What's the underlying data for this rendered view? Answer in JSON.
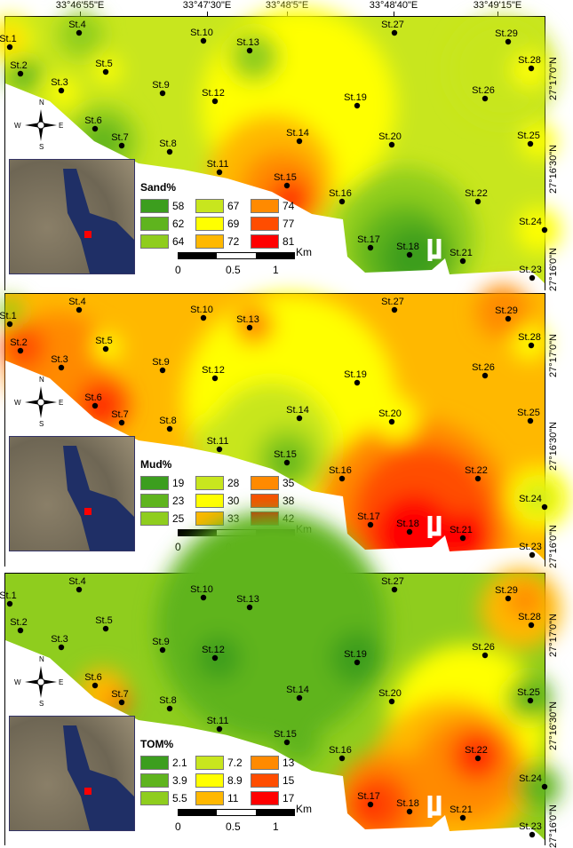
{
  "top_axis": [
    "33°46'55\"E",
    "33°47'30\"E",
    "33°48'5\"E",
    "33°48'40\"E",
    "33°49'15\"E"
  ],
  "right_axis": [
    "27°17'0\"N",
    "27°16'30\"N",
    "27°16'0\"N"
  ],
  "north": {
    "n": "N",
    "s": "S",
    "e": "E",
    "w": "W"
  },
  "stations": [
    "St.1",
    "St.2",
    "St.3",
    "St.4",
    "St.5",
    "St.6",
    "St.7",
    "St.8",
    "St.9",
    "St.10",
    "St.11",
    "St.12",
    "St.13",
    "St.14",
    "St.15",
    "St.16",
    "St.17",
    "St.18",
    "St.19",
    "St.20",
    "St.21",
    "St.22",
    "St.23",
    "St.24",
    "St.25",
    "St.26",
    "St.27",
    "St.28",
    "St.29"
  ],
  "scale": {
    "unit": "Km",
    "labels": [
      "0",
      "0.5",
      "1"
    ]
  },
  "panels": [
    {
      "title": "Sand%",
      "legend": [
        {
          "v": "58",
          "c": "#3c9e1e"
        },
        {
          "v": "62",
          "c": "#5fb41e"
        },
        {
          "v": "64",
          "c": "#8fcd1e"
        },
        {
          "v": "67",
          "c": "#c8e61e"
        },
        {
          "v": "69",
          "c": "#ffff00"
        },
        {
          "v": "72",
          "c": "#ffb800"
        },
        {
          "v": "74",
          "c": "#ff8a00"
        },
        {
          "v": "77",
          "c": "#ff4d00"
        },
        {
          "v": "81",
          "c": "#ff0000"
        }
      ]
    },
    {
      "title": "Mud%",
      "legend": [
        {
          "v": "19",
          "c": "#3c9e1e"
        },
        {
          "v": "23",
          "c": "#5fb41e"
        },
        {
          "v": "25",
          "c": "#8fcd1e"
        },
        {
          "v": "28",
          "c": "#c8e61e"
        },
        {
          "v": "30",
          "c": "#ffff00"
        },
        {
          "v": "33",
          "c": "#ffb800"
        },
        {
          "v": "35",
          "c": "#ff8a00"
        },
        {
          "v": "38",
          "c": "#ff4d00"
        },
        {
          "v": "42",
          "c": "#ff0000"
        }
      ]
    },
    {
      "title": "TOM%",
      "legend": [
        {
          "v": "2.1",
          "c": "#3c9e1e"
        },
        {
          "v": "3.9",
          "c": "#5fb41e"
        },
        {
          "v": "5.5",
          "c": "#8fcd1e"
        },
        {
          "v": "7.2",
          "c": "#c8e61e"
        },
        {
          "v": "8.9",
          "c": "#ffff00"
        },
        {
          "v": "11",
          "c": "#ffb800"
        },
        {
          "v": "13",
          "c": "#ff8a00"
        },
        {
          "v": "15",
          "c": "#ff4d00"
        },
        {
          "v": "17",
          "c": "#ff0000"
        }
      ]
    }
  ]
}
